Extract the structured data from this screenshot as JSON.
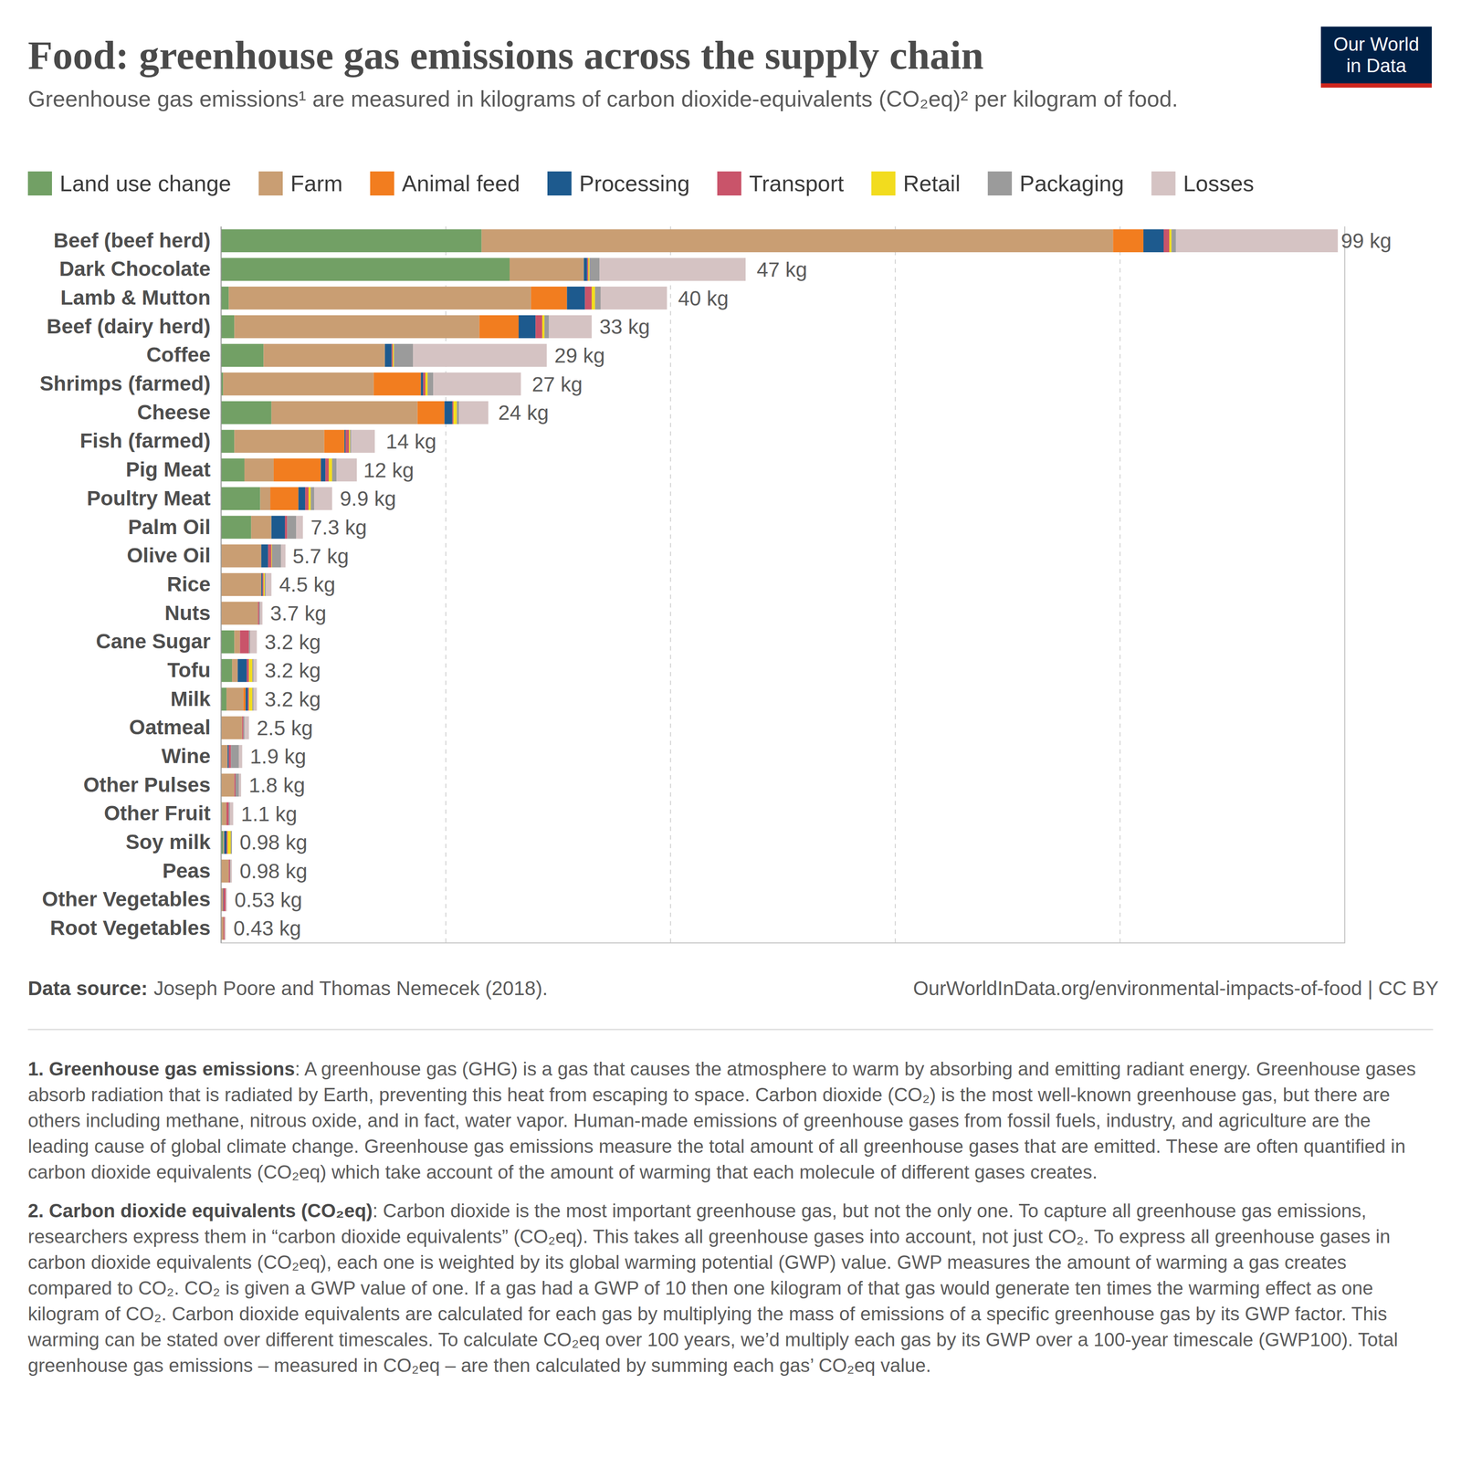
{
  "chart_data": {
    "type": "bar",
    "orientation": "horizontal",
    "stacked": true,
    "title": "Food: greenhouse gas emissions across the supply chain",
    "subtitle": "Greenhouse gas emissions¹ are measured in kilograms of carbon dioxide-equivalents (CO₂eq)² per kilogram of food.",
    "logo": [
      "Our World",
      "in Data"
    ],
    "categories": [
      "Beef (beef herd)",
      "Dark Chocolate",
      "Lamb & Mutton",
      "Beef (dairy herd)",
      "Coffee",
      "Shrimps (farmed)",
      "Cheese",
      "Fish (farmed)",
      "Pig Meat",
      "Poultry Meat",
      "Palm Oil",
      "Olive Oil",
      "Rice",
      "Nuts",
      "Cane Sugar",
      "Tofu",
      "Milk",
      "Oatmeal",
      "Wine",
      "Other Pulses",
      "Other Fruit",
      "Soy milk",
      "Peas",
      "Other Vegetables",
      "Root Vegetables"
    ],
    "series": [
      {
        "name": "Land use change",
        "color": "#72a065",
        "values": [
          23.2,
          25.7,
          0.7,
          1.2,
          3.8,
          0.2,
          4.5,
          1.2,
          2.1,
          3.5,
          2.7,
          0,
          0,
          0,
          1.2,
          1.0,
          0.5,
          0,
          0,
          0,
          0.1,
          0.2,
          0,
          0,
          0
        ]
      },
      {
        "name": "Farm",
        "color": "#c99e73",
        "values": [
          56.2,
          6.6,
          26.9,
          21.8,
          10.8,
          13.4,
          13.0,
          8.0,
          2.6,
          0.9,
          1.8,
          3.6,
          3.6,
          3.3,
          0.5,
          0.5,
          1.5,
          1.9,
          0.6,
          1.2,
          0.4,
          0.1,
          0.7,
          0.2,
          0.23
        ]
      },
      {
        "name": "Animal feed",
        "color": "#f27d1f",
        "values": [
          2.7,
          0,
          3.2,
          3.5,
          0,
          4.2,
          2.4,
          1.8,
          4.2,
          2.5,
          0,
          0,
          0,
          0,
          0,
          0,
          0.2,
          0,
          0,
          0,
          0,
          0,
          0,
          0,
          0
        ]
      },
      {
        "name": "Processing",
        "color": "#1d5a8e",
        "values": [
          1.8,
          0.3,
          1.6,
          1.5,
          0.6,
          0.2,
          0.7,
          0.1,
          0.4,
          0.6,
          1.2,
          0.6,
          0.1,
          0,
          0,
          0.8,
          0.2,
          0,
          0.1,
          0,
          0,
          0.2,
          0,
          0.03,
          0
        ]
      },
      {
        "name": "Transport",
        "color": "#c9546a",
        "values": [
          0.5,
          0.1,
          0.6,
          0.6,
          0.1,
          0.2,
          0.1,
          0.3,
          0.3,
          0.3,
          0.2,
          0.3,
          0.1,
          0.1,
          0.8,
          0.2,
          0.1,
          0.1,
          0.2,
          0.1,
          0.2,
          0.1,
          0.1,
          0.2,
          0.1
        ]
      },
      {
        "name": "Retail",
        "color": "#f2dc1e",
        "values": [
          0.2,
          0.1,
          0.3,
          0.2,
          0.1,
          0.2,
          0.3,
          0.1,
          0.3,
          0.2,
          0,
          0.05,
          0.1,
          0,
          0,
          0.3,
          0.3,
          0,
          0,
          0,
          0,
          0.28,
          0,
          0,
          0
        ]
      },
      {
        "name": "Packaging",
        "color": "#9b9b9b",
        "values": [
          0.4,
          0.9,
          0.5,
          0.4,
          1.7,
          0.5,
          0.2,
          0.1,
          0.4,
          0.3,
          0.8,
          0.8,
          0.1,
          0.1,
          0.1,
          0.1,
          0.1,
          0.1,
          0.7,
          0.3,
          0.1,
          0.1,
          0.04,
          0,
          0
        ]
      },
      {
        "name": "Losses",
        "color": "#d5c3c3",
        "values": [
          14.4,
          13.0,
          5.9,
          3.8,
          11.9,
          7.8,
          2.6,
          2.1,
          1.8,
          1.6,
          0.6,
          0.4,
          0.5,
          0.2,
          0.6,
          0.3,
          0.3,
          0.4,
          0.3,
          0.2,
          0.3,
          0,
          0.14,
          0.1,
          0.1
        ]
      }
    ],
    "totals": [
      99,
      47,
      40,
      33,
      29,
      27,
      24,
      14,
      12,
      9.9,
      7.3,
      5.7,
      4.5,
      3.7,
      3.2,
      3.2,
      3.2,
      2.5,
      1.9,
      1.8,
      1.1,
      0.98,
      0.98,
      0.53,
      0.43
    ],
    "total_labels": [
      "99 kg",
      "47 kg",
      "40 kg",
      "33 kg",
      "29 kg",
      "27 kg",
      "24 kg",
      "14 kg",
      "12 kg",
      "9.9 kg",
      "7.3 kg",
      "5.7 kg",
      "4.5 kg",
      "3.7 kg",
      "3.2 kg",
      "3.2 kg",
      "3.2 kg",
      "2.5 kg",
      "1.9 kg",
      "1.8 kg",
      "1.1 kg",
      "0.98 kg",
      "0.98 kg",
      "0.53 kg",
      "0.43 kg"
    ],
    "xlim": [
      0,
      100
    ],
    "xticks": [
      0,
      20,
      40,
      60,
      80
    ],
    "grid": true,
    "tick_labels": "y",
    "legend": "top",
    "source_label": "Data source:",
    "source": "Joseph Poore and Thomas Nemecek (2018).",
    "url": "OurWorldInData.org/environmental-impacts-of-food | CC BY",
    "notes": [
      {
        "heading": "1. Greenhouse gas emissions",
        "text": ": A greenhouse gas (GHG) is a gas that causes the atmosphere to warm by absorbing and emitting radiant energy. Greenhouse gases absorb radiation that is radiated by Earth, preventing this heat from escaping to space. Carbon dioxide (CO₂) is the most well-known greenhouse gas, but there are others including methane, nitrous oxide, and in fact, water vapor. Human-made emissions of greenhouse gases from fossil fuels, industry, and agriculture are the leading cause of global climate change. Greenhouse gas emissions measure the total amount of all greenhouse gases that are emitted. These are often quantified in carbon dioxide equivalents (CO₂eq) which take account of the amount of warming that each molecule of different gases creates."
      },
      {
        "heading": "2. Carbon dioxide equivalents (CO₂eq)",
        "text": ": Carbon dioxide is the most important greenhouse gas, but not the only one. To capture all greenhouse gas emissions, researchers express them in “carbon dioxide equivalents” (CO₂eq). This takes all greenhouse gases into account, not just CO₂. To express all greenhouse gases in carbon dioxide equivalents (CO₂eq), each one is weighted by its global warming potential (GWP) value. GWP measures the amount of warming a gas creates compared to CO₂. CO₂ is given a GWP value of one. If a gas had a GWP of 10 then one kilogram of that gas would generate ten times the warming effect as one kilogram of CO₂. Carbon dioxide equivalents are calculated for each gas by multiplying the mass of emissions of a specific greenhouse gas by its GWP factor. This warming can be stated over different timescales. To calculate CO₂eq over 100 years, we’d multiply each gas by its GWP over a 100-year timescale (GWP100). Total greenhouse gas emissions – measured in CO₂eq – are then calculated by summing each gas’ CO₂eq value."
      }
    ]
  }
}
